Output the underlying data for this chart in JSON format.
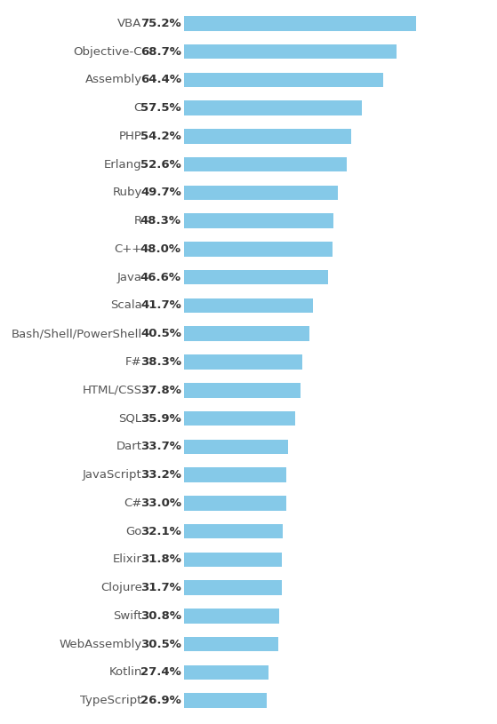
{
  "languages": [
    "VBA",
    "Objective-C",
    "Assembly",
    "C",
    "PHP",
    "Erlang",
    "Ruby",
    "R",
    "C++",
    "Java",
    "Scala",
    "Bash/Shell/PowerShell",
    "F#",
    "HTML/CSS",
    "SQL",
    "Dart",
    "JavaScript",
    "C#",
    "Go",
    "Elixir",
    "Clojure",
    "Swift",
    "WebAssembly",
    "Kotlin",
    "TypeScript"
  ],
  "values": [
    75.2,
    68.7,
    64.4,
    57.5,
    54.2,
    52.6,
    49.7,
    48.3,
    48.0,
    46.6,
    41.7,
    40.5,
    38.3,
    37.8,
    35.9,
    33.7,
    33.2,
    33.0,
    32.1,
    31.8,
    31.7,
    30.8,
    30.5,
    27.4,
    26.9
  ],
  "bar_color": "#85c9e8",
  "label_color": "#555555",
  "value_color": "#333333",
  "background_color": "#ffffff",
  "bar_height": 0.52,
  "figsize": [
    5.59,
    8.15
  ],
  "dpi": 100,
  "label_fontsize": 9.5,
  "value_fontsize": 9.5
}
